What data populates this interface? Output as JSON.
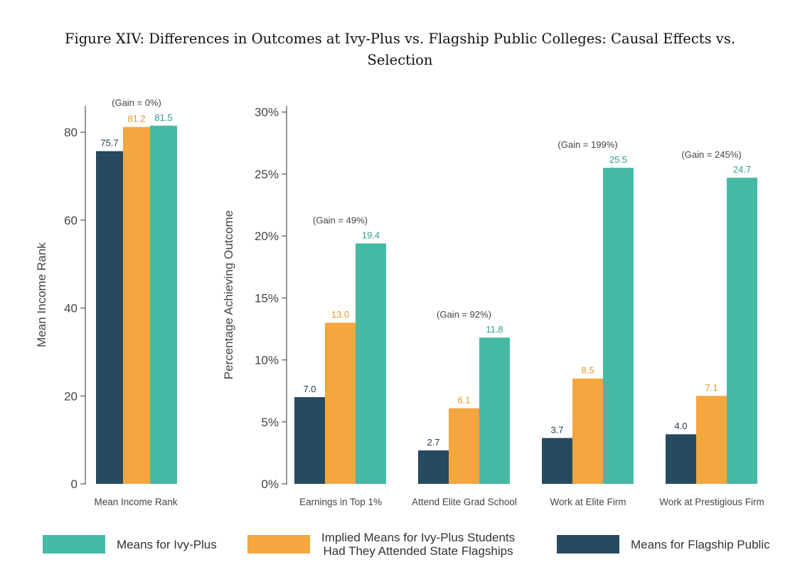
{
  "figure": {
    "title_line1": "Figure XIV: Differences in Outcomes at Ivy-Plus vs. Flagship Public Colleges: Causal Effects vs.",
    "title_line2": "Selection"
  },
  "colors": {
    "flagship": "#264a5e",
    "implied": "#f4a63f",
    "ivy": "#46b9a5",
    "axis": "#555555",
    "label_flagship": "#1e3a4d",
    "label_implied": "#e8952a",
    "label_ivy": "#2e9f8c",
    "gain": "#444444"
  },
  "legend": {
    "ivy": "Means for Ivy-Plus",
    "implied_line1": "Implied Means for Ivy-Plus Students",
    "implied_line2": "Had They Attended State Flagships",
    "flagship": "Means for Flagship Public"
  },
  "chart_data": [
    {
      "type": "bar",
      "categories": [
        "Mean Income Rank"
      ],
      "series": [
        {
          "name": "Means for Flagship Public",
          "values": [
            75.7
          ]
        },
        {
          "name": "Implied Means for Ivy-Plus Students Had They Attended State Flagships",
          "values": [
            81.2
          ]
        },
        {
          "name": "Means for Ivy-Plus",
          "values": [
            81.5
          ]
        }
      ],
      "value_labels": [
        [
          "75.7"
        ],
        [
          "81.2"
        ],
        [
          "81.5"
        ]
      ],
      "annotations": [
        "(Gain = 0%)"
      ],
      "ylabel": "Mean Income Rank",
      "ylim": [
        0,
        86
      ],
      "yticks": [
        0,
        20,
        40,
        60,
        80
      ],
      "ytick_labels": [
        "0",
        "20",
        "40",
        "60",
        "80"
      ],
      "grid": false
    },
    {
      "type": "bar",
      "categories": [
        "Earnings in Top 1%",
        "Attend Elite Grad School",
        "Work at Elite Firm",
        "Work at Prestigious Firm"
      ],
      "series": [
        {
          "name": "Means for Flagship Public",
          "values": [
            7.0,
            2.7,
            3.7,
            4.0
          ]
        },
        {
          "name": "Implied Means for Ivy-Plus Students Had They Attended State Flagships",
          "values": [
            13.0,
            6.1,
            8.5,
            7.1
          ]
        },
        {
          "name": "Means for Ivy-Plus",
          "values": [
            19.4,
            11.8,
            25.5,
            24.7
          ]
        }
      ],
      "value_labels": [
        [
          "7.0",
          "2.7",
          "3.7",
          "4.0"
        ],
        [
          "13.0",
          "6.1",
          "8.5",
          "7.1"
        ],
        [
          "19.4",
          "11.8",
          "25.5",
          "24.7"
        ]
      ],
      "annotations": [
        "(Gain = 49%)",
        "(Gain = 92%)",
        "(Gain = 199%)",
        "(Gain = 245%)"
      ],
      "ylabel": "Percentage Achieving Outcome",
      "ylim": [
        0,
        30.5
      ],
      "yticks": [
        0,
        5,
        10,
        15,
        20,
        25,
        30
      ],
      "ytick_labels": [
        "0%",
        "5%",
        "10%",
        "15%",
        "20%",
        "25%",
        "30%"
      ],
      "grid": false
    }
  ]
}
